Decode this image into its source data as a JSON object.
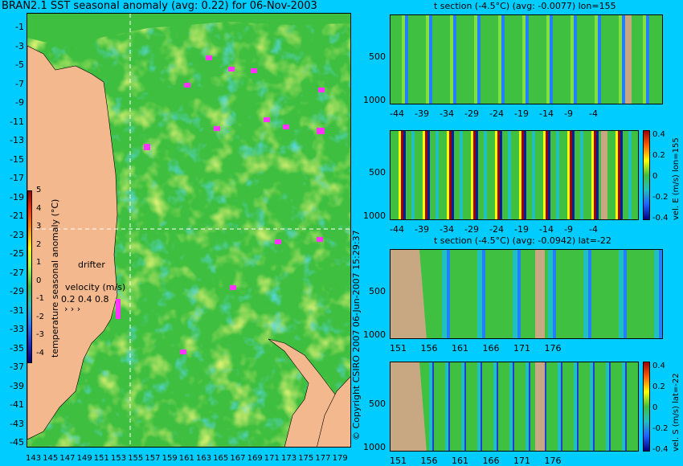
{
  "map": {
    "title": "BRAN2.1 SST seasonal anomaly (avg: 0.22) for 06-Nov-2003",
    "lat_labels": [
      "-1",
      "-3",
      "-5",
      "-7",
      "-9",
      "-11",
      "-13",
      "-15",
      "-17",
      "-19",
      "-21",
      "-23",
      "-25",
      "-27",
      "-29",
      "-31",
      "-33",
      "-35",
      "-37",
      "-39",
      "-41",
      "-43",
      "-45"
    ],
    "lon_labels": [
      "143",
      "145",
      "147",
      "149",
      "151",
      "153",
      "155",
      "157",
      "159",
      "161",
      "163",
      "165",
      "167",
      "169",
      "171",
      "173",
      "175",
      "177",
      "179"
    ],
    "colorbar_label": "temperature seasonal anomaly (°C)",
    "colorbar_ticks": [
      "5",
      "4",
      "3",
      "2",
      "1",
      "0",
      "-1",
      "-2",
      "-3",
      "-4"
    ],
    "drifter_label": "drifter",
    "velocity_label": "velocity (m/s)",
    "velocity_ticks": "0.2 0.4 0.8",
    "colors": {
      "land": "#f4b88e",
      "ocean": "#40c040",
      "drifter": "#ff33ff",
      "background": "#00ccff"
    }
  },
  "sections": [
    {
      "title": "t section (-4.5°C) (avg: -0.0077) lon=155",
      "x_labels": [
        "-44",
        "-39",
        "-34",
        "-29",
        "-24",
        "-19",
        "-14",
        "-9",
        "-4"
      ],
      "y_labels": [
        "500",
        "1000"
      ]
    },
    {
      "title": "",
      "x_labels": [
        "-44",
        "-39",
        "-34",
        "-29",
        "-24",
        "-19",
        "-14",
        "-9",
        "-4"
      ],
      "y_labels": [
        "500",
        "1000"
      ],
      "cbar_label": "vel. E (m/s) lon=155",
      "cbar_ticks": [
        "0.4",
        "0.2",
        "0",
        "-0.2",
        "-0.4"
      ]
    },
    {
      "title": "t section (-4.5°C) (avg: -0.0942) lat=-22",
      "x_labels": [
        "151",
        "156",
        "161",
        "166",
        "171",
        "176"
      ],
      "y_labels": [
        "500",
        "1000"
      ]
    },
    {
      "title": "",
      "x_labels": [
        "151",
        "156",
        "161",
        "166",
        "171",
        "176"
      ],
      "y_labels": [
        "500",
        "1000"
      ],
      "cbar_label": "vel. S (m/s) lat=-22",
      "cbar_ticks": [
        "0.4",
        "0.2",
        "0",
        "-0.2",
        "-0.4"
      ]
    }
  ],
  "copyright": "© Copyright CSIRO 2007  06-Jun-2007 15:29:37"
}
